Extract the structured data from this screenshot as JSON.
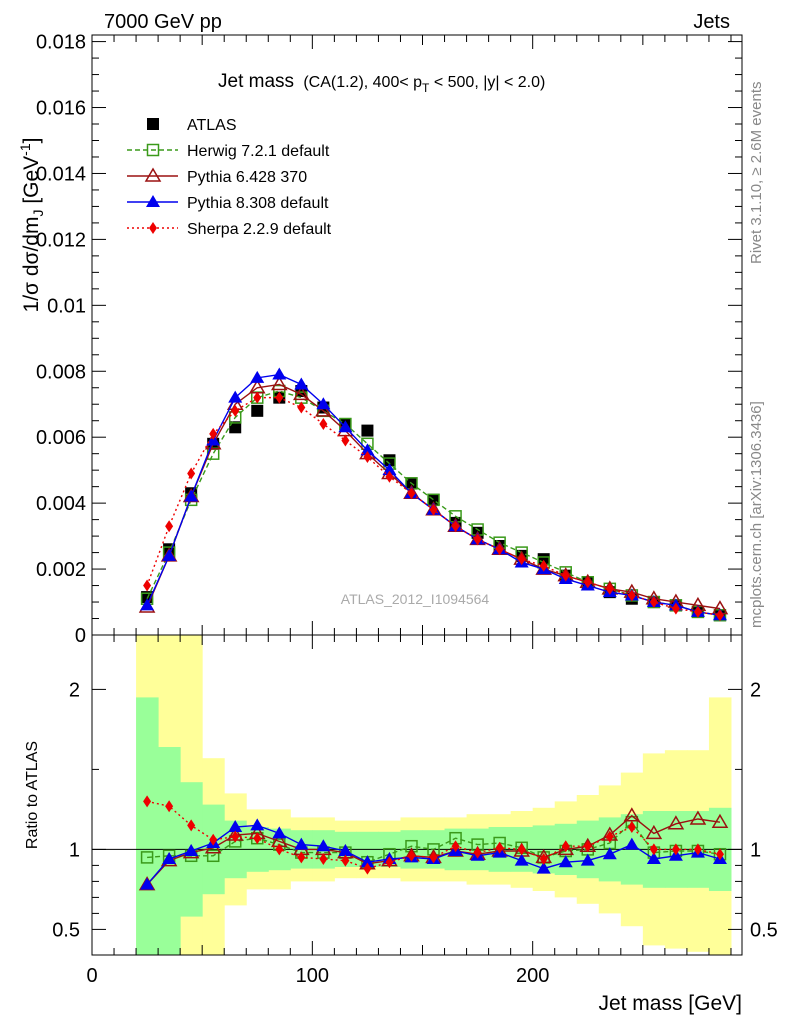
{
  "header": {
    "left": "7000 GeV pp",
    "right": "Jets"
  },
  "title": {
    "main": "Jet mass",
    "detail_prefix": "(CA(1.2), 400< p",
    "detail_sub": "T",
    "detail_suffix": " < 500, |y| < 2.0)"
  },
  "side_labels": {
    "rivet": "Rivet 3.1.10, ≥ 2.6M events",
    "mcplots": "mcplots.cern.ch [arXiv:1306.3436]"
  },
  "watermark": "ATLAS_2012_I1094564",
  "colors": {
    "herwig": "#3a9a1a",
    "pythia6": "#9b1111",
    "pythia8": "#0000ee",
    "sherpa": "#ee0000",
    "band_outer": "#ffff99",
    "band_inner": "#99ff99"
  },
  "chart_data": [
    {
      "type": "line",
      "title": "Jet mass",
      "ylabel": "1/σ dσ/dm_J [GeV^-1]",
      "ylim": [
        0,
        0.0182
      ],
      "xlim": [
        0,
        295
      ],
      "yticks": [
        {
          "v": 0,
          "label": "0"
        },
        {
          "v": 0.002,
          "label": "0.002"
        },
        {
          "v": 0.004,
          "label": "0.004"
        },
        {
          "v": 0.006,
          "label": "0.006"
        },
        {
          "v": 0.008,
          "label": "0.008"
        },
        {
          "v": 0.01,
          "label": "0.01"
        },
        {
          "v": 0.012,
          "label": "0.012"
        },
        {
          "v": 0.014,
          "label": "0.014"
        },
        {
          "v": 0.016,
          "label": "0.016"
        },
        {
          "v": 0.018,
          "label": "0.018"
        }
      ],
      "legend_position": "top-left",
      "x": [
        25,
        35,
        45,
        55,
        65,
        75,
        85,
        95,
        105,
        115,
        125,
        135,
        145,
        155,
        165,
        175,
        185,
        195,
        205,
        215,
        225,
        235,
        245,
        255,
        265,
        275,
        285
      ],
      "series": [
        {
          "name": "ATLAS",
          "key": "atlas",
          "marker": "square",
          "values": [
            0.00115,
            0.0026,
            0.0043,
            0.0058,
            0.0063,
            0.0068,
            0.0072,
            0.0074,
            0.0069,
            0.0064,
            0.0062,
            0.0053,
            0.0046,
            0.0041,
            0.0034,
            0.0031,
            0.0027,
            0.0024,
            0.0023,
            0.0018,
            0.0016,
            0.0013,
            0.0011,
            0.001,
            0.0009,
            0.0007,
            0.0006
          ]
        },
        {
          "name": "Herwig 7.2.1 default",
          "key": "herwig",
          "marker": "open-square",
          "values": [
            0.0011,
            0.0025,
            0.0041,
            0.0055,
            0.0066,
            0.0072,
            0.0074,
            0.0072,
            0.0068,
            0.0064,
            0.0058,
            0.0052,
            0.0046,
            0.0041,
            0.0036,
            0.0032,
            0.0028,
            0.0025,
            0.0022,
            0.0019,
            0.0016,
            0.0014,
            0.0012,
            0.001,
            0.0009,
            0.0007,
            0.0006
          ]
        },
        {
          "name": "Pythia 6.428 370",
          "key": "pythia6",
          "marker": "open-triangle",
          "values": [
            0.00085,
            0.0024,
            0.0042,
            0.0058,
            0.007,
            0.0075,
            0.0076,
            0.0073,
            0.0068,
            0.0062,
            0.0055,
            0.0049,
            0.0043,
            0.0038,
            0.0033,
            0.0029,
            0.0026,
            0.0023,
            0.002,
            0.0018,
            0.0016,
            0.0014,
            0.0013,
            0.0011,
            0.001,
            0.0009,
            0.0008
          ]
        },
        {
          "name": "Pythia 8.308 default",
          "key": "pythia8",
          "marker": "triangle",
          "values": [
            0.0009,
            0.0024,
            0.0042,
            0.0059,
            0.0072,
            0.0078,
            0.0079,
            0.0076,
            0.007,
            0.0063,
            0.0056,
            0.005,
            0.0043,
            0.0038,
            0.0033,
            0.0029,
            0.0026,
            0.0022,
            0.002,
            0.0017,
            0.0015,
            0.0013,
            0.0012,
            0.001,
            0.0009,
            0.0007,
            0.0006
          ]
        },
        {
          "name": "Sherpa 2.2.9 default",
          "key": "sherpa",
          "marker": "diamond",
          "values": [
            0.0015,
            0.0033,
            0.0049,
            0.0061,
            0.0068,
            0.0072,
            0.0072,
            0.0069,
            0.0064,
            0.0059,
            0.0054,
            0.0048,
            0.0043,
            0.0038,
            0.0033,
            0.0029,
            0.0026,
            0.0023,
            0.0021,
            0.0018,
            0.0016,
            0.0014,
            0.0012,
            0.001,
            0.0008,
            0.0007,
            0.0006
          ]
        }
      ]
    },
    {
      "type": "line",
      "ylabel": "Ratio to ATLAS",
      "xlabel": "Jet mass [GeV]",
      "ylim": [
        0.34,
        2.34
      ],
      "xlim": [
        0,
        295
      ],
      "yticks": [
        {
          "v": 0.5,
          "label": "0.5"
        },
        {
          "v": 1,
          "label": "1"
        },
        {
          "v": 2,
          "label": "2"
        }
      ],
      "xticks": [
        {
          "v": 0,
          "label": "0"
        },
        {
          "v": 100,
          "label": "100"
        },
        {
          "v": 200,
          "label": "200"
        }
      ],
      "bin_edges": [
        20,
        30,
        40,
        50,
        60,
        70,
        80,
        90,
        100,
        110,
        120,
        130,
        140,
        150,
        160,
        170,
        180,
        190,
        200,
        210,
        220,
        230,
        240,
        250,
        260,
        270,
        280,
        290
      ],
      "band_outer": [
        [
          0.34,
          2.34
        ],
        [
          0.34,
          2.34
        ],
        [
          0.34,
          2.34
        ],
        [
          0.34,
          1.57
        ],
        [
          0.65,
          1.35
        ],
        [
          0.75,
          1.25
        ],
        [
          0.75,
          1.25
        ],
        [
          0.8,
          1.2
        ],
        [
          0.8,
          1.2
        ],
        [
          0.82,
          1.18
        ],
        [
          0.82,
          1.18
        ],
        [
          0.82,
          1.18
        ],
        [
          0.8,
          1.2
        ],
        [
          0.8,
          1.2
        ],
        [
          0.8,
          1.2
        ],
        [
          0.78,
          1.22
        ],
        [
          0.78,
          1.22
        ],
        [
          0.76,
          1.24
        ],
        [
          0.74,
          1.26
        ],
        [
          0.7,
          1.3
        ],
        [
          0.66,
          1.34
        ],
        [
          0.6,
          1.4
        ],
        [
          0.52,
          1.48
        ],
        [
          0.4,
          1.6
        ],
        [
          0.38,
          1.62
        ],
        [
          0.36,
          1.62
        ],
        [
          0.34,
          1.95
        ]
      ],
      "band_inner": [
        [
          0.34,
          1.95
        ],
        [
          0.34,
          1.64
        ],
        [
          0.58,
          1.42
        ],
        [
          0.72,
          1.28
        ],
        [
          0.82,
          1.18
        ],
        [
          0.86,
          1.14
        ],
        [
          0.87,
          1.13
        ],
        [
          0.88,
          1.12
        ],
        [
          0.88,
          1.12
        ],
        [
          0.89,
          1.11
        ],
        [
          0.89,
          1.11
        ],
        [
          0.89,
          1.11
        ],
        [
          0.88,
          1.12
        ],
        [
          0.88,
          1.12
        ],
        [
          0.87,
          1.13
        ],
        [
          0.87,
          1.13
        ],
        [
          0.86,
          1.14
        ],
        [
          0.86,
          1.14
        ],
        [
          0.85,
          1.15
        ],
        [
          0.84,
          1.16
        ],
        [
          0.82,
          1.18
        ],
        [
          0.8,
          1.2
        ],
        [
          0.78,
          1.22
        ],
        [
          0.76,
          1.24
        ],
        [
          0.76,
          1.24
        ],
        [
          0.76,
          1.24
        ],
        [
          0.74,
          1.26
        ]
      ],
      "x": [
        25,
        35,
        45,
        55,
        65,
        75,
        85,
        95,
        105,
        115,
        125,
        135,
        145,
        155,
        165,
        175,
        185,
        195,
        205,
        215,
        225,
        235,
        245,
        255,
        265,
        275,
        285
      ],
      "series": [
        {
          "name": "Herwig 7.2.1 default",
          "key": "herwig",
          "marker": "open-square",
          "values": [
            0.95,
            0.96,
            0.96,
            0.96,
            1.05,
            1.07,
            1.03,
            0.98,
            0.98,
            0.98,
            0.92,
            0.97,
            1.02,
            1.0,
            1.07,
            1.03,
            1.04,
            1.01,
            0.95,
            0.99,
            1.0,
            1.04,
            1.17,
            0.98,
            0.99,
            0.99,
            0.97
          ]
        },
        {
          "name": "Pythia 6.428 370",
          "key": "pythia6",
          "marker": "open-triangle",
          "values": [
            0.78,
            0.93,
            0.98,
            1.01,
            1.09,
            1.1,
            1.05,
            1.0,
            1.0,
            0.98,
            0.91,
            0.93,
            0.96,
            0.95,
            0.99,
            0.97,
            0.99,
            0.99,
            0.95,
            1.0,
            1.02,
            1.09,
            1.21,
            1.1,
            1.16,
            1.19,
            1.17
          ]
        },
        {
          "name": "Pythia 8.308 default",
          "key": "pythia8",
          "marker": "triangle",
          "values": [
            0.78,
            0.94,
            0.99,
            1.04,
            1.14,
            1.15,
            1.1,
            1.03,
            1.02,
            0.99,
            0.92,
            0.94,
            0.95,
            0.94,
            0.99,
            0.96,
            0.98,
            0.93,
            0.88,
            0.92,
            0.93,
            0.97,
            1.03,
            0.94,
            0.96,
            0.98,
            0.94
          ]
        },
        {
          "name": "Sherpa 2.2.9 default",
          "key": "sherpa",
          "marker": "diamond",
          "values": [
            1.3,
            1.27,
            1.15,
            1.06,
            1.08,
            1.07,
            1.0,
            0.95,
            0.94,
            0.93,
            0.88,
            0.92,
            0.96,
            0.95,
            1.02,
            0.98,
            1.01,
            1.0,
            0.94,
            1.02,
            1.02,
            1.08,
            1.14,
            1.0,
            1.0,
            1.0,
            0.97
          ]
        }
      ]
    }
  ]
}
